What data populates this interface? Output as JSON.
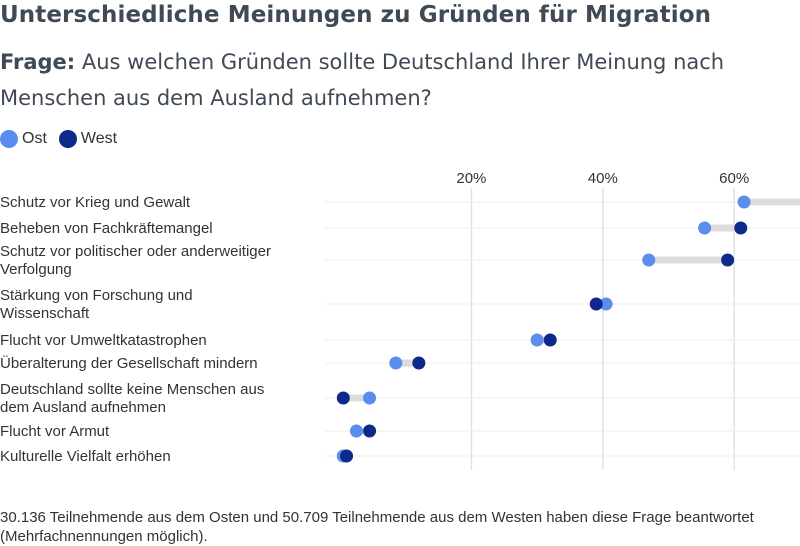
{
  "header": {
    "title": "Unterschiedliche Meinungen zu Gründen für Migration",
    "question_prefix": "Frage:",
    "question_text": " Aus welchen Gründen sollte Deutschland Ihrer Meinung nach Menschen aus dem Ausland aufnehmen?"
  },
  "legend": {
    "items": [
      {
        "label": "Ost",
        "color": "#5b8def"
      },
      {
        "label": "West",
        "color": "#0d2a8a"
      }
    ]
  },
  "chart_data": {
    "type": "dumbbell",
    "xlim": [
      0,
      72
    ],
    "xticks": [
      20,
      40,
      60
    ],
    "xtick_labels": [
      "20%",
      "40%",
      "60%"
    ],
    "grid": true,
    "legend_position": "top-left",
    "colors": {
      "ost": "#5b8def",
      "west": "#0d2a8a",
      "connector": "#dcdcdc"
    },
    "categories": [
      [
        "Schutz vor Krieg und Gewalt"
      ],
      [
        "Beheben von Fachkräftemangel"
      ],
      [
        "Schutz vor politischer oder anderweitiger",
        "Verfolgung"
      ],
      [
        "Stärkung von Forschung und",
        "Wissenschaft"
      ],
      [
        "Flucht vor Umweltkatastrophen"
      ],
      [
        "Überalterung der Gesellschaft mindern"
      ],
      [
        "Deutschland sollte keine Menschen aus",
        "dem Ausland aufnehmen"
      ],
      [
        "Flucht vor Armut"
      ],
      [
        "Kulturelle Vielfalt erhöhen"
      ]
    ],
    "series": [
      {
        "name": "Ost",
        "values": [
          61.5,
          55.5,
          47,
          40.5,
          30,
          8.5,
          4.5,
          2.5,
          0.5
        ]
      },
      {
        "name": "West",
        "values": [
          72,
          61,
          59,
          39,
          32,
          12,
          0.5,
          4.5,
          1
        ]
      }
    ]
  },
  "footnote": "30.136 Teilnehmende aus dem Osten und 50.709 Teilnehmende aus dem Westen haben diese Frage beantwortet (Mehrfachnennungen möglich)."
}
